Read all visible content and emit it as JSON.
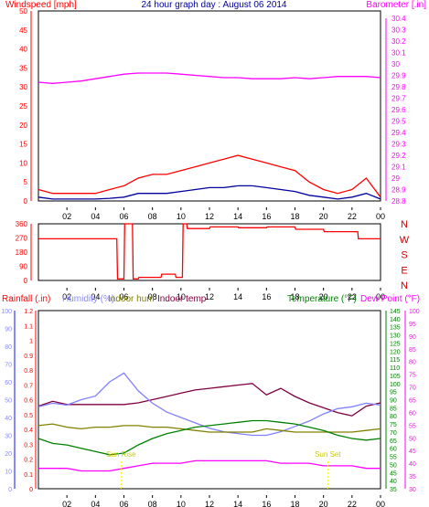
{
  "chart_data": [
    {
      "type": "line",
      "title": "24 hour graph day : August 06 2014",
      "x_ticks": [
        "02",
        "04",
        "06",
        "08",
        "10",
        "12",
        "14",
        "16",
        "18",
        "20",
        "22",
        "00"
      ],
      "left_axis": {
        "label": "Windspeed [mph]",
        "ticks": [
          "0",
          "5",
          "10",
          "15",
          "20",
          "25",
          "30",
          "35",
          "40",
          "45",
          "50"
        ],
        "ylim": [
          0,
          50
        ],
        "color": "#ff0000"
      },
      "right_axis": {
        "label": "Barometer [.in]",
        "ticks": [
          "28.8",
          "28.9",
          "29",
          "29.1",
          "29.2",
          "29.3",
          "29.4",
          "29.5",
          "29.6",
          "29.7",
          "29.8",
          "29.9",
          "30",
          "30.1",
          "30.2",
          "30.3",
          "30.4"
        ],
        "ylim": [
          28.8,
          30.4
        ],
        "color": "#ff00ff"
      },
      "series": [
        {
          "color": "#ff00ff",
          "x": [
            0,
            1,
            2,
            3,
            4,
            5,
            6,
            7,
            8,
            9,
            10,
            11,
            12,
            13,
            14,
            15,
            16,
            17,
            18,
            19,
            20,
            21,
            22,
            23,
            24
          ],
          "y": [
            29.84,
            29.83,
            29.84,
            29.85,
            29.87,
            29.89,
            29.91,
            29.92,
            29.92,
            29.92,
            29.91,
            29.9,
            29.89,
            29.88,
            29.88,
            29.87,
            29.87,
            29.87,
            29.88,
            29.87,
            29.88,
            29.89,
            29.89,
            29.89,
            29.88
          ]
        },
        {
          "color": "#ff0000",
          "x": [
            0,
            1,
            2,
            3,
            4,
            5,
            6,
            7,
            8,
            9,
            10,
            11,
            12,
            13,
            14,
            15,
            16,
            17,
            18,
            19,
            20,
            21,
            22,
            23,
            24
          ],
          "y": [
            3,
            2,
            2,
            2,
            2,
            3,
            4,
            6,
            7,
            7,
            8,
            9,
            10,
            11,
            12,
            11,
            10,
            9,
            8,
            5,
            3,
            2,
            3,
            6,
            1
          ]
        },
        {
          "color": "#0000a0",
          "x": [
            0,
            1,
            2,
            3,
            4,
            5,
            6,
            7,
            8,
            9,
            10,
            11,
            12,
            13,
            14,
            15,
            16,
            17,
            18,
            19,
            20,
            21,
            22,
            23,
            24
          ],
          "y": [
            1,
            0.5,
            0.5,
            0.5,
            0.5,
            0.7,
            1,
            2,
            2,
            2,
            2.5,
            3,
            3.5,
            3.5,
            4,
            4,
            3.5,
            3,
            2.5,
            1.5,
            1,
            0.5,
            1,
            2,
            0.5
          ]
        }
      ]
    },
    {
      "type": "line",
      "x_ticks": [
        "02",
        "04",
        "06",
        "08",
        "10",
        "12",
        "14",
        "16",
        "18",
        "20",
        "22",
        "00"
      ],
      "left_axis": {
        "ticks": [
          "0",
          "90",
          "180",
          "270",
          "360"
        ],
        "ylim": [
          0,
          360
        ],
        "color": "#ff0000"
      },
      "right_axis": {
        "ticks": [
          "N",
          "W",
          "S",
          "E",
          "N"
        ],
        "color": "#cc0000"
      },
      "series": [
        {
          "color": "#ff0000",
          "x": [
            0,
            5.5,
            5.55,
            6,
            6.05,
            6.6,
            6.65,
            7,
            7.05,
            8.6,
            8.65,
            9.6,
            9.65,
            10.1,
            10.15,
            10.4,
            10.45,
            12,
            12.05,
            14,
            14.05,
            16,
            16.05,
            18,
            18.05,
            20,
            20.05,
            22.4,
            22.45,
            24
          ],
          "y": [
            265,
            265,
            10,
            10,
            360,
            360,
            10,
            10,
            20,
            20,
            40,
            40,
            20,
            20,
            360,
            360,
            330,
            330,
            340,
            340,
            335,
            335,
            340,
            340,
            325,
            325,
            310,
            310,
            265,
            265
          ]
        }
      ]
    },
    {
      "type": "line",
      "x_ticks": [
        "02",
        "04",
        "06",
        "08",
        "10",
        "12",
        "14",
        "16",
        "18",
        "20",
        "22",
        "00"
      ],
      "axes": [
        {
          "label": "Rainfall (.in)",
          "ticks": [
            "0",
            "0.1",
            "0.2",
            "0.3",
            "0.4",
            "0.5",
            "0.6",
            "0.7",
            "0.8",
            "0.9",
            "1",
            "1.1",
            "1.2"
          ],
          "ylim": [
            0,
            1.2
          ],
          "color": "#ff0000"
        },
        {
          "label": "Humidity (%)",
          "ticks": [
            "0",
            "10",
            "20",
            "30",
            "40",
            "50",
            "60",
            "70",
            "80",
            "90",
            "100"
          ],
          "ylim": [
            0,
            100
          ],
          "color": "#8888ff"
        },
        {
          "label": "Temperature (°F)",
          "ticks": [
            "35",
            "40",
            "45",
            "50",
            "55",
            "60",
            "65",
            "70",
            "75",
            "80",
            "85",
            "90",
            "95",
            "100",
            "105",
            "110",
            "115",
            "120",
            "125",
            "130",
            "135",
            "140",
            "145"
          ],
          "ylim": [
            35,
            145
          ],
          "color": "#008000"
        },
        {
          "label": "Dew Point (°F)",
          "ticks": [
            "30",
            "35",
            "40",
            "45",
            "50",
            "55",
            "60",
            "65",
            "70",
            "75",
            "80",
            "85",
            "90",
            "95",
            "100"
          ],
          "ylim": [
            30,
            100
          ],
          "color": "#ff00ff"
        }
      ],
      "legend": [
        "Rainfall (.in)",
        "Humidity (%)",
        "Indoor hum",
        "Indoor temp",
        "Temperature (°F)",
        "Dew Point (°F)"
      ],
      "annotations": [
        "Sun Rise",
        "Sun Set"
      ],
      "series": [
        {
          "name": "Indoor temp",
          "color": "#800040",
          "x": [
            0,
            1,
            2,
            3,
            4,
            5,
            6,
            7,
            8,
            9,
            10,
            11,
            12,
            13,
            14,
            15,
            16,
            17,
            18,
            19,
            20,
            21,
            22,
            23,
            24
          ],
          "y": [
            86,
            89,
            87,
            87,
            87,
            87,
            87,
            88,
            90,
            92,
            94,
            96,
            97,
            98,
            99,
            100,
            93,
            97,
            92,
            88,
            85,
            82,
            80,
            86,
            88
          ]
        },
        {
          "name": "Humidity (%)",
          "color": "#8080ff",
          "x": [
            0,
            1,
            2,
            3,
            4,
            5,
            6,
            7,
            8,
            9,
            10,
            11,
            12,
            13,
            14,
            15,
            16,
            17,
            18,
            19,
            20,
            21,
            22,
            23,
            24
          ],
          "y": [
            46,
            48,
            47,
            50,
            52,
            60,
            65,
            55,
            48,
            43,
            40,
            37,
            34,
            32,
            31,
            30,
            30,
            32,
            35,
            38,
            42,
            45,
            46,
            48,
            47
          ]
        },
        {
          "name": "Indoor hum",
          "color": "#808000",
          "x": [
            0,
            1,
            2,
            3,
            4,
            5,
            6,
            7,
            8,
            9,
            10,
            11,
            12,
            13,
            14,
            15,
            16,
            17,
            18,
            19,
            20,
            21,
            22,
            23,
            24
          ],
          "y": [
            74,
            75,
            73,
            72,
            73,
            73,
            74,
            74,
            73,
            73,
            72,
            71,
            70,
            70,
            70,
            70,
            72,
            71,
            70,
            70,
            70,
            70,
            70,
            71,
            72
          ]
        },
        {
          "name": "Temperature (°F)",
          "color": "#008000",
          "x": [
            0,
            1,
            2,
            3,
            4,
            5,
            6,
            7,
            8,
            9,
            10,
            11,
            12,
            13,
            14,
            15,
            16,
            17,
            18,
            19,
            20,
            21,
            22,
            23,
            24
          ],
          "y": [
            66,
            63,
            62,
            60,
            58,
            56,
            57,
            62,
            66,
            69,
            71,
            73,
            74,
            75,
            76,
            77,
            77,
            76,
            75,
            73,
            71,
            68,
            66,
            65,
            66
          ]
        },
        {
          "name": "Dew Point (°F)",
          "color": "#ff00ff",
          "x": [
            0,
            1,
            2,
            3,
            4,
            5,
            6,
            7,
            8,
            9,
            10,
            11,
            12,
            13,
            14,
            15,
            16,
            17,
            18,
            19,
            20,
            21,
            22,
            23,
            24
          ],
          "y": [
            38,
            38,
            38,
            37,
            37,
            37,
            38,
            39,
            40,
            40,
            40,
            41,
            41,
            41,
            41,
            41,
            41,
            40,
            40,
            40,
            39,
            39,
            39,
            38,
            38
          ]
        }
      ]
    }
  ]
}
